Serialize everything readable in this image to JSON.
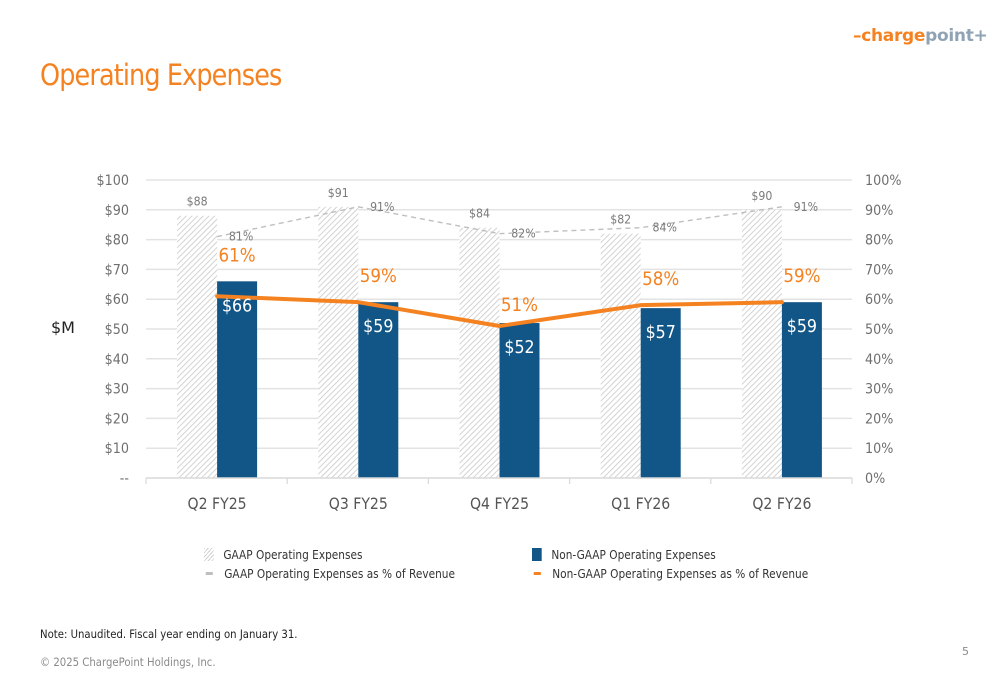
{
  "logo": {
    "part1": "–charge",
    "part2": "point+"
  },
  "page": {
    "title": "Operating Expenses",
    "note": "Note: Unaudited. Fiscal year ending on January 31.",
    "copyright": "© 2025 ChargePoint Holdings, Inc.",
    "page_number": "5"
  },
  "colors": {
    "accent_orange": "#F58220",
    "navy": "#125687",
    "gaap_hatch": "#cfcfcf",
    "gaap_line": "#bfbfbf"
  },
  "legend": {
    "items": [
      {
        "label": "GAAP Operating Expenses",
        "icon": "hatched-square"
      },
      {
        "label": "Non-GAAP Operating Expenses",
        "icon": "navy-square"
      },
      {
        "label": "GAAP Operating Expenses as % of Revenue",
        "icon": "grey-dash"
      },
      {
        "label": "Non-GAAP Operating Expenses as % of Revenue",
        "icon": "orange-dash"
      }
    ]
  },
  "chart_data": {
    "type": "bar",
    "title": "Operating Expenses",
    "ylabel": "$M",
    "y2label": "",
    "xlabel": "",
    "categories": [
      "Q2 FY25",
      "Q3 FY25",
      "Q4 FY25",
      "Q1 FY26",
      "Q2 FY26"
    ],
    "ylim": [
      0,
      100
    ],
    "y2lim": [
      0,
      100
    ],
    "yticks": [
      "--",
      "$10",
      "$20",
      "$30",
      "$40",
      "$50",
      "$60",
      "$70",
      "$80",
      "$90",
      "$100"
    ],
    "y2ticks": [
      "0%",
      "10%",
      "20%",
      "30%",
      "40%",
      "50%",
      "60%",
      "70%",
      "80%",
      "90%",
      "100%"
    ],
    "grid": true,
    "legend_position": "bottom",
    "series": [
      {
        "name": "GAAP Operating Expenses",
        "kind": "bar",
        "axis": "left",
        "values": [
          88,
          91,
          84,
          82,
          90
        ],
        "labels": [
          "$88",
          "$91",
          "$84",
          "$82",
          "$90"
        ]
      },
      {
        "name": "Non-GAAP Operating Expenses",
        "kind": "bar",
        "axis": "left",
        "values": [
          66,
          59,
          52,
          57,
          59
        ],
        "labels": [
          "$66",
          "$59",
          "$52",
          "$57",
          "$59"
        ]
      },
      {
        "name": "GAAP Operating Expenses as % of Revenue",
        "kind": "line-dashed",
        "axis": "right",
        "values": [
          81,
          91,
          82,
          84,
          91
        ],
        "labels": [
          "81%",
          "91%",
          "82%",
          "84%",
          "91%"
        ]
      },
      {
        "name": "Non-GAAP Operating Expenses as % of Revenue",
        "kind": "line",
        "axis": "right",
        "values": [
          61,
          59,
          51,
          58,
          59
        ],
        "labels": [
          "61%",
          "59%",
          "51%",
          "58%",
          "59%"
        ]
      }
    ]
  }
}
